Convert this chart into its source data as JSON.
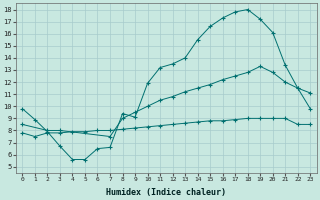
{
  "xlabel": "Humidex (Indice chaleur)",
  "xlim": [
    -0.5,
    23.5
  ],
  "ylim": [
    4.5,
    18.5
  ],
  "xticks": [
    0,
    1,
    2,
    3,
    4,
    5,
    6,
    7,
    8,
    9,
    10,
    11,
    12,
    13,
    14,
    15,
    16,
    17,
    18,
    19,
    20,
    21,
    22,
    23
  ],
  "yticks": [
    5,
    6,
    7,
    8,
    9,
    10,
    11,
    12,
    13,
    14,
    15,
    16,
    17,
    18
  ],
  "bg_color": "#c8e8e0",
  "grid_color": "#a8cccc",
  "line_color": "#007070",
  "line1_x": [
    0,
    1,
    2,
    3,
    4,
    5,
    6,
    7,
    8,
    9,
    10,
    11,
    12,
    13,
    14,
    15,
    16,
    17,
    18,
    19,
    20,
    21,
    22,
    23
  ],
  "line1_y": [
    9.8,
    8.9,
    7.9,
    6.7,
    5.6,
    5.6,
    6.5,
    6.6,
    9.4,
    9.1,
    11.9,
    13.2,
    13.5,
    14.0,
    15.5,
    16.6,
    17.3,
    17.8,
    18.0,
    17.2,
    16.1,
    13.4,
    11.5,
    11.1
  ],
  "line2_x": [
    0,
    2,
    3,
    7,
    8,
    9,
    10,
    11,
    12,
    13,
    14,
    15,
    16,
    17,
    18,
    19,
    20,
    21,
    22,
    23
  ],
  "line2_y": [
    8.5,
    8.0,
    8.0,
    7.5,
    9.0,
    9.5,
    10.0,
    10.5,
    10.8,
    11.2,
    11.5,
    11.8,
    12.2,
    12.5,
    12.8,
    13.3,
    12.8,
    12.0,
    11.5,
    9.8
  ],
  "line3_x": [
    0,
    1,
    2,
    3,
    4,
    5,
    6,
    7,
    8,
    9,
    10,
    11,
    12,
    13,
    14,
    15,
    16,
    17,
    18,
    19,
    20,
    21,
    22,
    23
  ],
  "line3_y": [
    7.8,
    7.5,
    7.8,
    7.8,
    7.9,
    7.9,
    8.0,
    8.0,
    8.1,
    8.2,
    8.3,
    8.4,
    8.5,
    8.6,
    8.7,
    8.8,
    8.8,
    8.9,
    9.0,
    9.0,
    9.0,
    9.0,
    8.5,
    8.5
  ]
}
